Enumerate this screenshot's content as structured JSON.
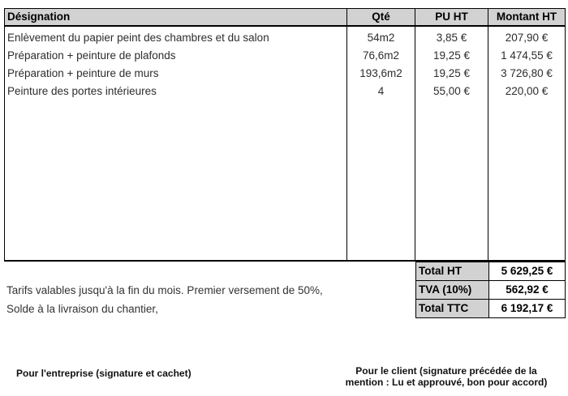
{
  "table": {
    "columns": [
      "Désignation",
      "Qté",
      "PU HT",
      "Montant HT"
    ],
    "rows": [
      {
        "designation": "Enlèvement du papier peint des chambres et du salon",
        "qty": "54m2",
        "unit_price": "3,85 €",
        "amount": "207,90 €"
      },
      {
        "designation": "Préparation + peinture de plafonds",
        "qty": "76,6m2",
        "unit_price": "19,25 €",
        "amount": "1 474,55 €"
      },
      {
        "designation": "Préparation + peinture de murs",
        "qty": "193,6m2",
        "unit_price": "19,25 €",
        "amount": "3 726,80 €"
      },
      {
        "designation": "Peinture des portes intérieures",
        "qty": "4",
        "unit_price": "55,00 €",
        "amount": "220,00 €"
      }
    ]
  },
  "totals": {
    "rows": [
      {
        "label": "Total HT",
        "value": "5 629,25 €"
      },
      {
        "label": "TVA (10%)",
        "value": "562,92 €"
      },
      {
        "label": "Total TTC",
        "value": "6 192,17 €"
      }
    ]
  },
  "notes": {
    "line1": "Tarifs valables jusqu'à la fin du mois. Premier versement de 50%,",
    "line2": "Solde à la livraison du chantier,"
  },
  "signatures": {
    "company": "Pour l'entreprise (signature et cachet)",
    "client_line1": "Pour le client (signature précédée de la",
    "client_line2": "mention : Lu et approuvé, bon pour accord)"
  },
  "colors": {
    "header_bg": "#d2d2d2",
    "border": "#000000",
    "body_text": "#2d2d2d"
  }
}
